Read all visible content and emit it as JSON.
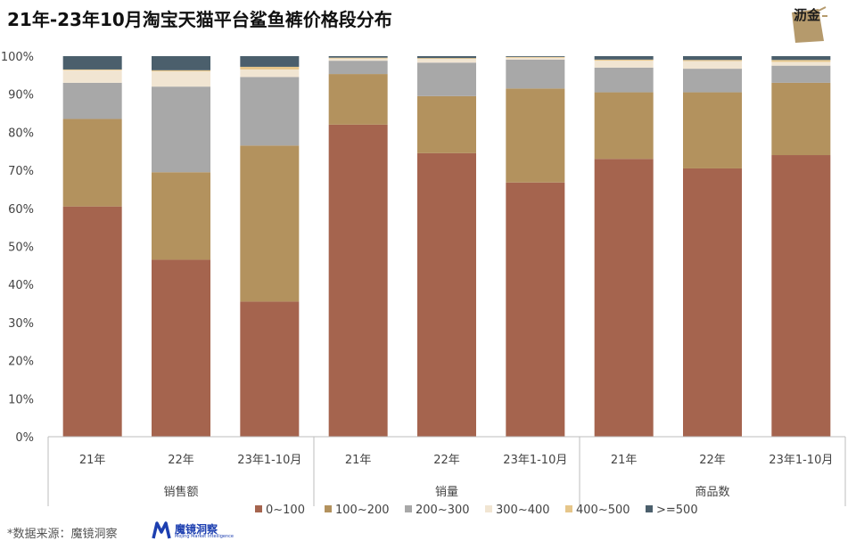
{
  "title": "21年-23年10月淘宝天猫平台鲨鱼裤价格段分布",
  "logo": {
    "text": "沥金"
  },
  "source": "*数据来源：魔镜洞察",
  "brand": {
    "name": "魔镜洞察",
    "subtitle": "Mojing Market Intelligence"
  },
  "colors": {
    "0~100": "#a5644e",
    "100~200": "#b3925e",
    "200~300": "#a8a8a8",
    "300~400": "#f1e5d2",
    "400~500": "#e6c68a",
    ">=500": "#4b5f6c"
  },
  "chart_data": {
    "type": "bar",
    "stacked": true,
    "percent": true,
    "ylim": [
      0,
      100
    ],
    "yticks": [
      "0%",
      "10%",
      "20%",
      "30%",
      "40%",
      "50%",
      "60%",
      "70%",
      "80%",
      "90%",
      "100%"
    ],
    "groups": [
      "销售额",
      "销量",
      "商品数"
    ],
    "categories": [
      "21年",
      "22年",
      "23年1-10月",
      "21年",
      "22年",
      "23年1-10月",
      "21年",
      "22年",
      "23年1-10月"
    ],
    "series": [
      {
        "name": "0~100",
        "values": [
          60.5,
          46.5,
          35.5,
          82.0,
          74.5,
          66.8,
          73.0,
          70.5,
          74.0
        ]
      },
      {
        "name": "100~200",
        "values": [
          23.0,
          23.0,
          41.0,
          13.3,
          15.0,
          24.7,
          17.5,
          20.0,
          19.0
        ]
      },
      {
        "name": "200~300",
        "values": [
          9.5,
          22.5,
          18.0,
          3.5,
          8.8,
          7.6,
          6.5,
          6.2,
          4.5
        ]
      },
      {
        "name": "300~400",
        "values": [
          3.3,
          4.0,
          2.0,
          0.6,
          1.0,
          0.5,
          1.8,
          2.0,
          1.0
        ]
      },
      {
        "name": "400~500",
        "values": [
          0.2,
          0.3,
          0.7,
          0.2,
          0.2,
          0.2,
          0.3,
          0.3,
          0.5
        ]
      },
      {
        "name": ">=500",
        "values": [
          3.5,
          3.7,
          2.8,
          0.4,
          0.5,
          0.2,
          0.9,
          1.0,
          1.0
        ]
      }
    ],
    "legend": "bottom",
    "grid": false
  }
}
